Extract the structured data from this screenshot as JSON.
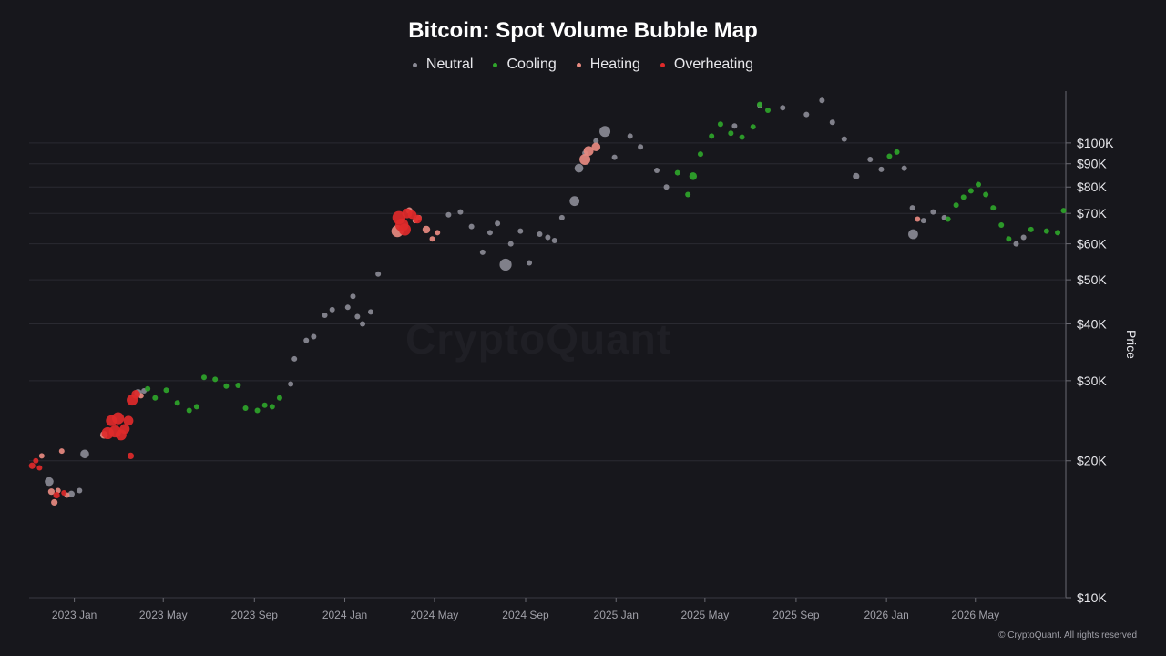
{
  "title": "Bitcoin: Spot Volume Bubble Map",
  "watermark": "CryptoQuant",
  "copyright": "© CryptoQuant. All rights reserved",
  "legend": [
    {
      "label": "Neutral",
      "color": "#8a8a94"
    },
    {
      "label": "Cooling",
      "color": "#2fa52a"
    },
    {
      "label": "Heating",
      "color": "#e88a80"
    },
    {
      "label": "Overheating",
      "color": "#e02a2a"
    }
  ],
  "chart_data": {
    "type": "scatter",
    "title": "Bitcoin: Spot Volume Bubble Map",
    "ylabel": "Price",
    "yscale": "log",
    "ylim": [
      10000,
      130000
    ],
    "xlim": [
      "2022-11-01",
      "2026-08-31"
    ],
    "grid": true,
    "legend_position": "top",
    "x_ticks": [
      {
        "date": "2023-01-01",
        "label": "2023 Jan"
      },
      {
        "date": "2023-05-01",
        "label": "2023 May"
      },
      {
        "date": "2023-09-01",
        "label": "2023 Sep"
      },
      {
        "date": "2024-01-01",
        "label": "2024 Jan"
      },
      {
        "date": "2024-05-01",
        "label": "2024 May"
      },
      {
        "date": "2024-09-01",
        "label": "2024 Sep"
      },
      {
        "date": "2025-01-01",
        "label": "2025 Jan"
      },
      {
        "date": "2025-05-01",
        "label": "2025 May"
      },
      {
        "date": "2025-09-01",
        "label": "2025 Sep"
      },
      {
        "date": "2026-01-01",
        "label": "2026 Jan"
      },
      {
        "date": "2026-05-01",
        "label": "2026 May"
      }
    ],
    "y_ticks": [
      {
        "value": 10000,
        "label": "$10K"
      },
      {
        "value": 20000,
        "label": "$20K"
      },
      {
        "value": 30000,
        "label": "$30K"
      },
      {
        "value": 40000,
        "label": "$40K"
      },
      {
        "value": 50000,
        "label": "$50K"
      },
      {
        "value": 60000,
        "label": "$60K"
      },
      {
        "value": 70000,
        "label": "$70K"
      },
      {
        "value": 80000,
        "label": "$80K"
      },
      {
        "value": 90000,
        "label": "$90K"
      },
      {
        "value": 100000,
        "label": "$100K"
      }
    ],
    "series": [
      {
        "name": "Neutral",
        "color": "#8a8a94",
        "points": [
          [
            "2022-11-28",
            18000,
            1.6
          ],
          [
            "2022-12-28",
            16900,
            1.2
          ],
          [
            "2023-01-08",
            17200,
            1.0
          ],
          [
            "2023-01-15",
            20700,
            1.6
          ],
          [
            "2023-03-28",
            28200,
            1.4
          ],
          [
            "2023-04-05",
            28500,
            1.0
          ],
          [
            "2023-10-20",
            29500,
            1.0
          ],
          [
            "2023-10-25",
            33500,
            1.0
          ],
          [
            "2023-11-10",
            36800,
            1.0
          ],
          [
            "2023-11-20",
            37500,
            1.0
          ],
          [
            "2023-12-05",
            41800,
            1.0
          ],
          [
            "2023-12-15",
            43000,
            1.0
          ],
          [
            "2024-01-05",
            43500,
            1.0
          ],
          [
            "2024-01-12",
            46000,
            1.0
          ],
          [
            "2024-01-18",
            41500,
            1.0
          ],
          [
            "2024-01-25",
            40000,
            1.0
          ],
          [
            "2024-02-05",
            42500,
            1.0
          ],
          [
            "2024-02-15",
            51500,
            1.0
          ],
          [
            "2024-05-20",
            69500,
            1.0
          ],
          [
            "2024-06-05",
            70500,
            1.0
          ],
          [
            "2024-06-20",
            65500,
            1.0
          ],
          [
            "2024-07-05",
            57500,
            1.0
          ],
          [
            "2024-07-15",
            63500,
            1.0
          ],
          [
            "2024-07-25",
            66500,
            1.0
          ],
          [
            "2024-08-05",
            54000,
            2.2
          ],
          [
            "2024-08-12",
            60000,
            1.0
          ],
          [
            "2024-08-25",
            64000,
            1.0
          ],
          [
            "2024-09-06",
            54500,
            1.0
          ],
          [
            "2024-09-20",
            63000,
            1.0
          ],
          [
            "2024-10-01",
            62000,
            1.0
          ],
          [
            "2024-10-10",
            61000,
            1.0
          ],
          [
            "2024-10-20",
            68500,
            1.0
          ],
          [
            "2024-11-06",
            74500,
            1.8
          ],
          [
            "2024-11-12",
            88000,
            1.6
          ],
          [
            "2024-11-20",
            95000,
            1.0
          ],
          [
            "2024-12-05",
            101000,
            1.0
          ],
          [
            "2024-12-17",
            106000,
            2.0
          ],
          [
            "2024-12-30",
            93000,
            1.0
          ],
          [
            "2025-01-20",
            103500,
            1.0
          ],
          [
            "2025-02-03",
            98000,
            1.0
          ],
          [
            "2025-02-25",
            87000,
            1.0
          ],
          [
            "2025-03-10",
            80000,
            1.0
          ],
          [
            "2025-06-10",
            109000,
            1.0
          ],
          [
            "2025-07-14",
            121000,
            1.0
          ],
          [
            "2025-08-14",
            119500,
            1.0
          ],
          [
            "2025-09-15",
            115500,
            1.0
          ],
          [
            "2025-10-06",
            124000,
            1.0
          ],
          [
            "2025-10-20",
            111000,
            1.0
          ],
          [
            "2025-11-05",
            102000,
            1.0
          ],
          [
            "2025-11-21",
            84500,
            1.2
          ],
          [
            "2025-12-10",
            92000,
            1.0
          ],
          [
            "2025-12-25",
            87500,
            1.0
          ],
          [
            "2026-01-25",
            88000,
            1.0
          ],
          [
            "2026-02-05",
            72000,
            1.0
          ],
          [
            "2026-02-06",
            63000,
            1.8
          ],
          [
            "2026-02-20",
            67500,
            1.0
          ],
          [
            "2026-03-05",
            70500,
            1.0
          ],
          [
            "2026-03-20",
            68500,
            1.0
          ],
          [
            "2026-06-25",
            60000,
            1.0
          ],
          [
            "2026-07-05",
            62000,
            1.0
          ]
        ]
      },
      {
        "name": "Cooling",
        "color": "#2fa52a",
        "points": [
          [
            "2023-04-10",
            28800,
            1.0
          ],
          [
            "2023-04-20",
            27500,
            1.0
          ],
          [
            "2023-05-05",
            28600,
            1.0
          ],
          [
            "2023-05-20",
            26800,
            1.0
          ],
          [
            "2023-06-05",
            25800,
            1.0
          ],
          [
            "2023-06-15",
            26300,
            1.0
          ],
          [
            "2023-06-25",
            30500,
            1.0
          ],
          [
            "2023-07-10",
            30200,
            1.0
          ],
          [
            "2023-07-25",
            29200,
            1.0
          ],
          [
            "2023-08-10",
            29300,
            1.0
          ],
          [
            "2023-08-20",
            26100,
            1.0
          ],
          [
            "2023-09-05",
            25800,
            1.0
          ],
          [
            "2023-09-15",
            26500,
            1.0
          ],
          [
            "2023-09-25",
            26300,
            1.0
          ],
          [
            "2023-10-05",
            27500,
            1.0
          ],
          [
            "2025-03-25",
            86000,
            1.0
          ],
          [
            "2025-04-08",
            77000,
            1.0
          ],
          [
            "2025-04-15",
            84500,
            1.4
          ],
          [
            "2025-04-25",
            94500,
            1.0
          ],
          [
            "2025-05-10",
            103500,
            1.0
          ],
          [
            "2025-05-22",
            110000,
            1.0
          ],
          [
            "2025-06-05",
            105000,
            1.0
          ],
          [
            "2025-06-20",
            103000,
            1.0
          ],
          [
            "2025-07-05",
            108500,
            1.0
          ],
          [
            "2025-07-14",
            121500,
            1.0
          ],
          [
            "2025-07-25",
            118000,
            1.0
          ],
          [
            "2026-01-05",
            93500,
            1.0
          ],
          [
            "2026-01-15",
            95500,
            1.0
          ],
          [
            "2026-03-25",
            68000,
            1.0
          ],
          [
            "2026-04-05",
            73000,
            1.0
          ],
          [
            "2026-04-15",
            76000,
            1.0
          ],
          [
            "2026-04-25",
            78500,
            1.0
          ],
          [
            "2026-05-05",
            81000,
            1.0
          ],
          [
            "2026-05-15",
            77000,
            1.0
          ],
          [
            "2026-05-25",
            72000,
            1.0
          ],
          [
            "2026-06-05",
            66000,
            1.0
          ],
          [
            "2026-06-15",
            61500,
            1.0
          ],
          [
            "2026-07-15",
            64500,
            1.0
          ],
          [
            "2026-08-05",
            64000,
            1.0
          ],
          [
            "2026-08-20",
            63500,
            1.0
          ],
          [
            "2026-08-28",
            71000,
            1.0
          ]
        ]
      },
      {
        "name": "Heating",
        "color": "#e88a80",
        "points": [
          [
            "2022-11-18",
            20500,
            1.0
          ],
          [
            "2022-12-01",
            17100,
            1.2
          ],
          [
            "2022-12-05",
            16200,
            1.2
          ],
          [
            "2022-12-10",
            17200,
            1.0
          ],
          [
            "2022-12-15",
            21000,
            1.0
          ],
          [
            "2022-12-22",
            16800,
            1.0
          ],
          [
            "2023-02-10",
            22800,
            1.4
          ],
          [
            "2023-04-01",
            27800,
            1.0
          ],
          [
            "2024-03-12",
            64000,
            2.2
          ],
          [
            "2024-03-28",
            71000,
            1.2
          ],
          [
            "2024-04-05",
            67500,
            1.0
          ],
          [
            "2024-04-10",
            68500,
            1.0
          ],
          [
            "2024-04-20",
            64500,
            1.4
          ],
          [
            "2024-04-28",
            61500,
            1.0
          ],
          [
            "2024-05-05",
            63500,
            1.0
          ],
          [
            "2024-11-20",
            92000,
            2.0
          ],
          [
            "2024-11-25",
            96000,
            1.8
          ],
          [
            "2024-12-05",
            98000,
            1.6
          ],
          [
            "2026-02-12",
            68000,
            1.0
          ]
        ]
      },
      {
        "name": "Overheating",
        "color": "#e02a2a",
        "points": [
          [
            "2022-11-05",
            19500,
            1.2
          ],
          [
            "2022-11-10",
            20000,
            1.0
          ],
          [
            "2022-11-15",
            19300,
            1.0
          ],
          [
            "2022-12-08",
            16800,
            1.2
          ],
          [
            "2022-12-18",
            17000,
            1.0
          ],
          [
            "2023-02-15",
            23000,
            2.2
          ],
          [
            "2023-02-20",
            24500,
            2.0
          ],
          [
            "2023-02-25",
            23200,
            2.2
          ],
          [
            "2023-03-01",
            24800,
            2.2
          ],
          [
            "2023-03-05",
            22800,
            2.0
          ],
          [
            "2023-03-10",
            23500,
            1.8
          ],
          [
            "2023-03-15",
            24500,
            1.8
          ],
          [
            "2023-03-18",
            20500,
            1.2
          ],
          [
            "2023-03-20",
            27200,
            2.0
          ],
          [
            "2023-03-25",
            28000,
            1.6
          ],
          [
            "2024-03-14",
            68500,
            2.4
          ],
          [
            "2024-03-18",
            66000,
            2.4
          ],
          [
            "2024-03-22",
            64500,
            2.2
          ],
          [
            "2024-03-25",
            70000,
            1.8
          ],
          [
            "2024-04-01",
            69500,
            1.6
          ],
          [
            "2024-04-08",
            68000,
            1.6
          ]
        ]
      }
    ]
  }
}
